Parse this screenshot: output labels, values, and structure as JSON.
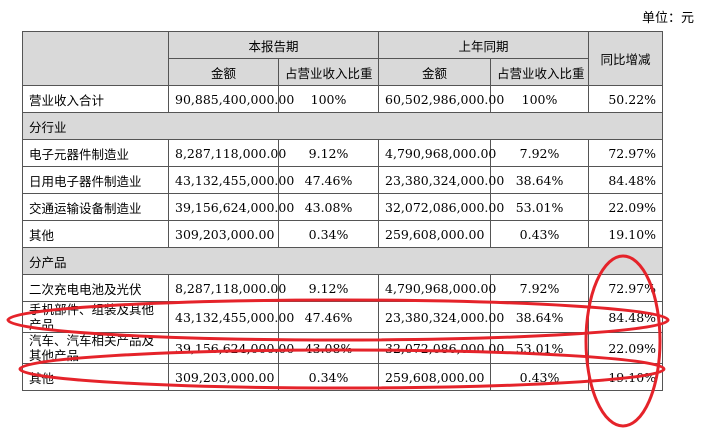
{
  "unit_label": "单位：元",
  "header": {
    "current_period": "本报告期",
    "last_year_period": "上年同期",
    "yoy_change": "同比增减",
    "amount": "金额",
    "revenue_share": "占营业收入比重"
  },
  "total_row": {
    "name": "营业收入合计",
    "current_amount": "90,885,400,000.00",
    "current_share": "100%",
    "prior_amount": "60,502,986,000.00",
    "prior_share": "100%",
    "yoy": "50.22%"
  },
  "by_industry": {
    "title": "分行业",
    "rows": [
      {
        "name": "电子元器件制造业",
        "current_amount": "8,287,118,000.00",
        "current_share": "9.12%",
        "prior_amount": "4,790,968,000.00",
        "prior_share": "7.92%",
        "yoy": "72.97%"
      },
      {
        "name": "日用电子器件制造业",
        "current_amount": "43,132,455,000.00",
        "current_share": "47.46%",
        "prior_amount": "23,380,324,000.00",
        "prior_share": "38.64%",
        "yoy": "84.48%"
      },
      {
        "name": "交通运输设备制造业",
        "current_amount": "39,156,624,000.00",
        "current_share": "43.08%",
        "prior_amount": "32,072,086,000.00",
        "prior_share": "53.01%",
        "yoy": "22.09%"
      },
      {
        "name": "其他",
        "current_amount": "309,203,000.00",
        "current_share": "0.34%",
        "prior_amount": "259,608,000.00",
        "prior_share": "0.43%",
        "yoy": "19.10%"
      }
    ]
  },
  "by_product": {
    "title": "分产品",
    "rows": [
      {
        "name": "二次充电电池及光伏",
        "current_amount": "8,287,118,000.00",
        "current_share": "9.12%",
        "prior_amount": "4,790,968,000.00",
        "prior_share": "7.92%",
        "yoy": "72.97%"
      },
      {
        "name": "手机部件、组装及其他产品",
        "current_amount": "43,132,455,000.00",
        "current_share": "47.46%",
        "prior_amount": "23,380,324,000.00",
        "prior_share": "38.64%",
        "yoy": "84.48%"
      },
      {
        "name": "汽车、汽车相关产品及其他产品",
        "current_amount": "39,156,624,000.00",
        "current_share": "43.08%",
        "prior_amount": "32,072,086,000.00",
        "prior_share": "53.01%",
        "yoy": "22.09%"
      },
      {
        "name": "其他",
        "current_amount": "309,203,000.00",
        "current_share": "0.34%",
        "prior_amount": "259,608,000.00",
        "prior_share": "0.43%",
        "yoy": "19.10%"
      }
    ]
  },
  "annotation_color": "#e5232a"
}
